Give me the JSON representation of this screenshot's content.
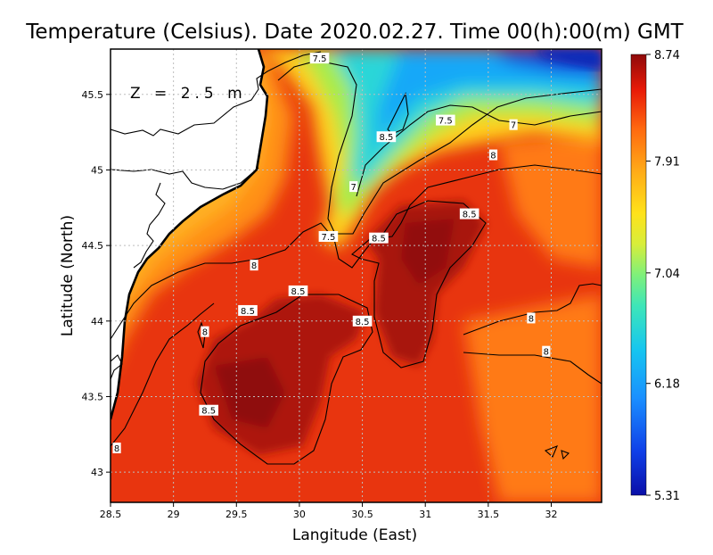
{
  "chart_data": {
    "type": "heatmap",
    "title": "Temperature (Celsius). Date 2020.02.27. Time 00(h):00(m)  GMT",
    "xlabel": "Langitude (East)",
    "ylabel": "Latitude (North)",
    "annotation": "Z = 2.5 m",
    "xlim": [
      28.5,
      32.4
    ],
    "ylim": [
      42.8,
      45.8
    ],
    "x_ticks": [
      {
        "value": 28.5,
        "label": "28.5"
      },
      {
        "value": 29,
        "label": "29"
      },
      {
        "value": 29.5,
        "label": "29.5"
      },
      {
        "value": 30,
        "label": "30"
      },
      {
        "value": 30.5,
        "label": "30.5"
      },
      {
        "value": 31,
        "label": "31"
      },
      {
        "value": 31.5,
        "label": "31.5"
      },
      {
        "value": 32,
        "label": "32"
      }
    ],
    "y_ticks": [
      {
        "value": 43,
        "label": "43"
      },
      {
        "value": 43.5,
        "label": "43.5"
      },
      {
        "value": 44,
        "label": "44"
      },
      {
        "value": 44.5,
        "label": "44.5"
      },
      {
        "value": 45,
        "label": "45"
      },
      {
        "value": 45.5,
        "label": "45.5"
      }
    ],
    "grid": true,
    "colorbar": {
      "min": 5.31,
      "max": 8.74,
      "tick_labels": [
        "8.74",
        "7.91",
        "7.04",
        "6.18",
        "5.31"
      ],
      "tick_values": [
        8.74,
        7.91,
        7.04,
        6.18,
        5.31
      ]
    },
    "contour_labels": [
      {
        "text": "7.5",
        "lon": 30.16,
        "lat": 45.74
      },
      {
        "text": "8.5",
        "lon": 30.69,
        "lat": 45.22
      },
      {
        "text": "7.5",
        "lon": 31.16,
        "lat": 45.33
      },
      {
        "text": "7",
        "lon": 31.7,
        "lat": 45.3
      },
      {
        "text": "8",
        "lon": 31.54,
        "lat": 45.1
      },
      {
        "text": "7",
        "lon": 30.43,
        "lat": 44.89
      },
      {
        "text": "8.5",
        "lon": 31.35,
        "lat": 44.71
      },
      {
        "text": "7.5",
        "lon": 30.23,
        "lat": 44.56
      },
      {
        "text": "8.5",
        "lon": 30.63,
        "lat": 44.55
      },
      {
        "text": "8",
        "lon": 29.64,
        "lat": 44.37
      },
      {
        "text": "8.5",
        "lon": 29.99,
        "lat": 44.2
      },
      {
        "text": "8.5",
        "lon": 29.59,
        "lat": 44.07
      },
      {
        "text": "8.5",
        "lon": 30.5,
        "lat": 44.0
      },
      {
        "text": "8",
        "lon": 31.84,
        "lat": 44.02
      },
      {
        "text": "8",
        "lon": 29.25,
        "lat": 43.93
      },
      {
        "text": "8",
        "lon": 31.96,
        "lat": 43.8
      },
      {
        "text": "8.5",
        "lon": 29.28,
        "lat": 43.41
      },
      {
        "text": "8",
        "lon": 28.55,
        "lat": 43.16
      }
    ]
  }
}
